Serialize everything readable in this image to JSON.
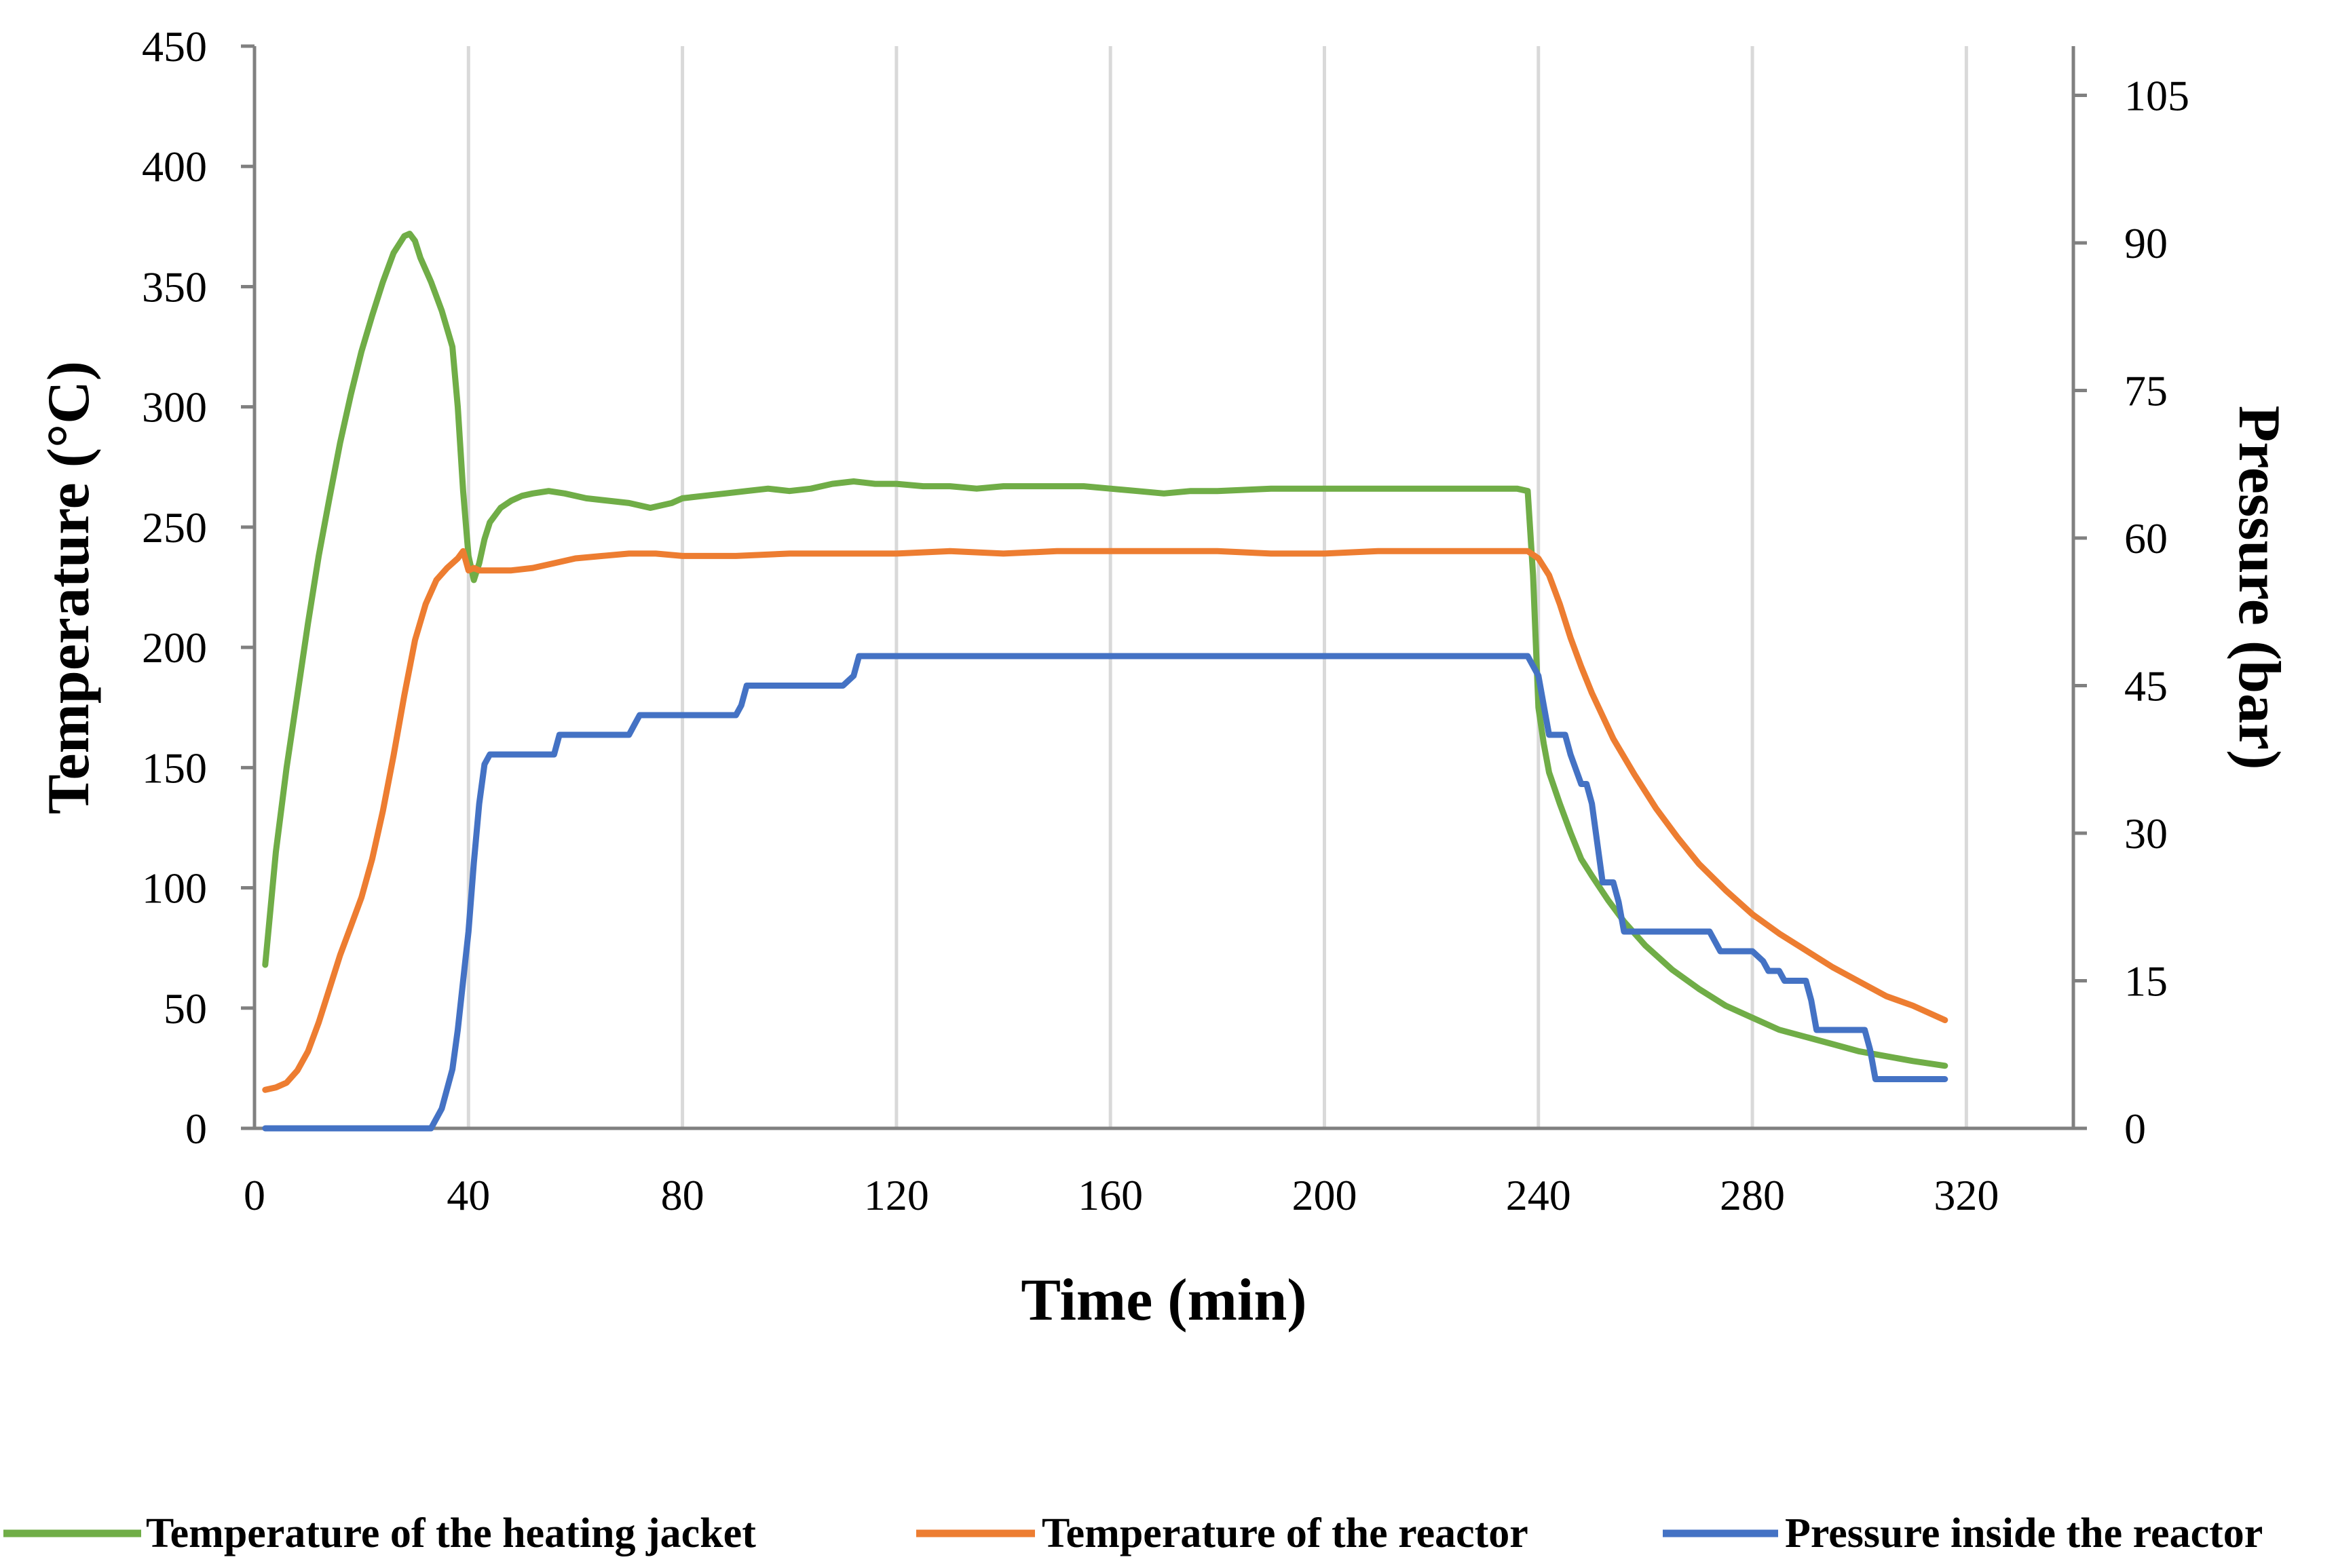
{
  "chart_data": {
    "type": "line",
    "title": "",
    "xlabel": "Time (min)",
    "ylabel": "Temperature (°C)",
    "y2label": "Pressure (bar)",
    "xlim": [
      0,
      340
    ],
    "ylim": [
      0,
      450
    ],
    "y2lim": [
      0,
      110
    ],
    "xticks": [
      "0",
      "40",
      "80",
      "120",
      "160",
      "200",
      "240",
      "280",
      "320"
    ],
    "yticks": [
      "0",
      "50",
      "100",
      "150",
      "200",
      "250",
      "300",
      "350",
      "400",
      "450"
    ],
    "y2ticks": [
      "0",
      "15",
      "30",
      "45",
      "60",
      "75",
      "90",
      "105"
    ],
    "grid": "vertical",
    "legend_position": "bottom",
    "series": [
      {
        "name": "Temperature of the heating jacket",
        "axis": "left",
        "color": "#70AD47",
        "x": [
          2,
          4,
          6,
          8,
          10,
          12,
          14,
          16,
          18,
          20,
          22,
          24,
          26,
          28,
          29,
          30,
          31,
          33,
          35,
          37,
          38,
          39,
          40,
          41,
          42,
          43,
          44,
          46,
          48,
          50,
          52,
          55,
          58,
          62,
          66,
          70,
          74,
          78,
          80,
          84,
          88,
          92,
          96,
          100,
          104,
          108,
          112,
          116,
          120,
          125,
          130,
          135,
          140,
          145,
          150,
          155,
          160,
          165,
          170,
          175,
          180,
          190,
          200,
          210,
          220,
          230,
          236,
          238,
          239,
          240,
          241,
          242,
          244,
          246,
          248,
          250,
          253,
          256,
          260,
          265,
          270,
          275,
          280,
          285,
          290,
          295,
          300,
          305,
          310,
          316
        ],
        "values": [
          68,
          115,
          150,
          180,
          210,
          238,
          262,
          285,
          305,
          323,
          338,
          352,
          364,
          371,
          372,
          369,
          362,
          352,
          340,
          325,
          300,
          265,
          238,
          228,
          235,
          245,
          252,
          258,
          261,
          263,
          264,
          265,
          264,
          262,
          261,
          260,
          258,
          260,
          262,
          263,
          264,
          265,
          266,
          265,
          266,
          268,
          269,
          268,
          268,
          267,
          267,
          266,
          267,
          267,
          267,
          267,
          266,
          265,
          264,
          265,
          265,
          266,
          266,
          266,
          266,
          266,
          266,
          265,
          230,
          175,
          160,
          148,
          135,
          123,
          112,
          105,
          95,
          86,
          76,
          66,
          58,
          51,
          46,
          41,
          38,
          35,
          32,
          30,
          28,
          26
        ]
      },
      {
        "name": "Temperature of the reactor",
        "axis": "left",
        "color": "#ED7D31",
        "x": [
          2,
          4,
          6,
          8,
          10,
          12,
          14,
          16,
          18,
          20,
          22,
          24,
          26,
          28,
          30,
          32,
          34,
          36,
          38,
          39,
          40,
          41,
          42,
          44,
          48,
          52,
          56,
          60,
          65,
          70,
          75,
          80,
          90,
          100,
          110,
          120,
          130,
          140,
          150,
          160,
          170,
          180,
          190,
          200,
          210,
          220,
          230,
          238,
          240,
          242,
          244,
          246,
          248,
          250,
          254,
          258,
          262,
          266,
          270,
          275,
          280,
          285,
          290,
          295,
          300,
          305,
          310,
          316
        ],
        "values": [
          16,
          17,
          19,
          24,
          32,
          44,
          58,
          72,
          84,
          96,
          112,
          132,
          155,
          180,
          203,
          218,
          228,
          233,
          237,
          240,
          232,
          233,
          232,
          232,
          232,
          233,
          235,
          237,
          238,
          239,
          239,
          238,
          238,
          239,
          239,
          239,
          240,
          239,
          240,
          240,
          240,
          240,
          239,
          239,
          240,
          240,
          240,
          240,
          237,
          230,
          218,
          204,
          192,
          181,
          162,
          147,
          133,
          121,
          110,
          99,
          89,
          81,
          74,
          67,
          61,
          55,
          51,
          45
        ]
      },
      {
        "name": "Pressure inside the reactor",
        "axis": "right",
        "color": "#4472C4",
        "x": [
          2,
          10,
          20,
          30,
          33,
          35,
          37,
          38,
          40,
          41,
          42,
          43,
          44,
          46,
          48,
          52,
          55,
          56,
          57,
          58,
          65,
          70,
          71,
          72,
          73,
          80,
          90,
          91,
          92,
          93,
          100,
          110,
          112,
          113,
          114,
          115,
          120,
          150,
          200,
          236,
          238,
          240,
          241,
          242,
          243,
          245,
          246,
          248,
          249,
          250,
          251,
          252,
          254,
          255,
          256,
          260,
          265,
          270,
          272,
          273,
          274,
          275,
          276,
          280,
          282,
          283,
          284,
          285,
          286,
          287,
          288,
          290,
          291,
          292,
          293,
          294,
          296,
          298,
          300,
          301,
          302,
          303,
          304,
          306,
          310,
          316
        ],
        "values": [
          0,
          0,
          0,
          0,
          0,
          2,
          6,
          10,
          20,
          27,
          33,
          37,
          38,
          38,
          38,
          38,
          38,
          38,
          40,
          40,
          40,
          40,
          41,
          42,
          42,
          42,
          42,
          43,
          45,
          45,
          45,
          45,
          46,
          48,
          48,
          48,
          48,
          48,
          48,
          48,
          48,
          46,
          43,
          40,
          40,
          40,
          38,
          35,
          35,
          33,
          29,
          25,
          25,
          23,
          20,
          20,
          20,
          20,
          20,
          19,
          18,
          18,
          18,
          18,
          17,
          16,
          16,
          16,
          15,
          15,
          15,
          15,
          13,
          10,
          10,
          10,
          10,
          10,
          10,
          10,
          8,
          5,
          5,
          5,
          5,
          5
        ]
      }
    ]
  }
}
